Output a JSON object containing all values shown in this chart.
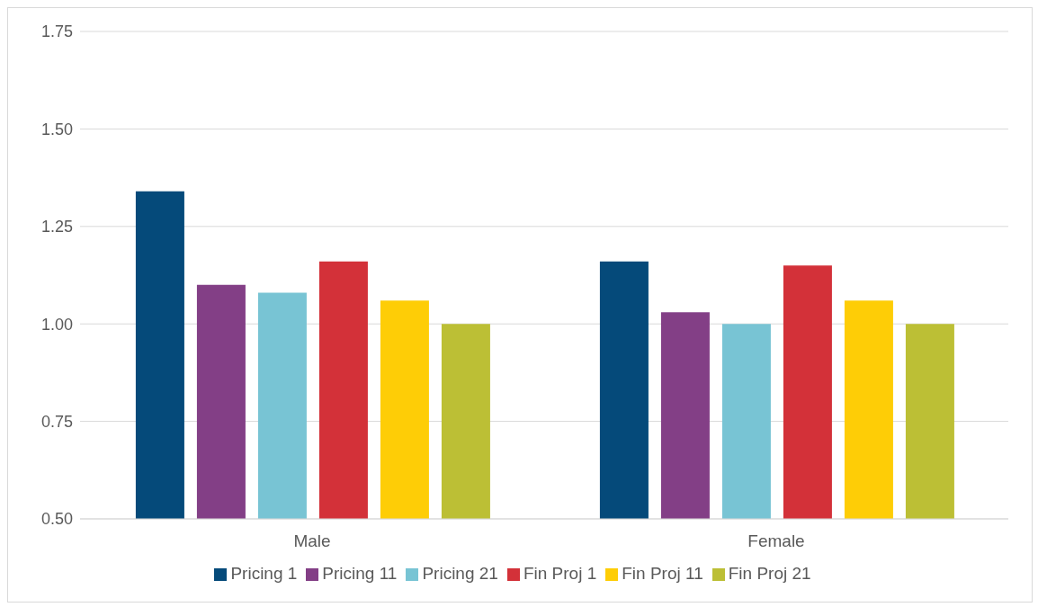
{
  "chart_data": {
    "type": "bar",
    "categories": [
      "Male",
      "Female"
    ],
    "series": [
      {
        "name": "Pricing 1",
        "color": "#054a7a",
        "values": [
          1.34,
          1.16
        ]
      },
      {
        "name": "Pricing 11",
        "color": "#833f86",
        "values": [
          1.1,
          1.03
        ]
      },
      {
        "name": "Pricing 21",
        "color": "#78c4d4",
        "values": [
          1.08,
          1.0
        ]
      },
      {
        "name": "Fin Proj 1",
        "color": "#d33139",
        "values": [
          1.16,
          1.15
        ]
      },
      {
        "name": "Fin Proj 11",
        "color": "#fecd06",
        "values": [
          1.06,
          1.06
        ]
      },
      {
        "name": "Fin Proj 21",
        "color": "#bcbf35",
        "values": [
          1.0,
          1.0
        ]
      }
    ],
    "ylim": [
      0.5,
      1.75
    ],
    "yticks": [
      {
        "value": 0.5,
        "label": "0.50"
      },
      {
        "value": 0.75,
        "label": "0.75"
      },
      {
        "value": 1,
        "label": "1.00"
      },
      {
        "value": 1.25,
        "label": "1.25"
      },
      {
        "value": 1.5,
        "label": "1.50"
      },
      {
        "value": 1.75,
        "label": "1.75"
      }
    ],
    "grid": "y",
    "legend": "bottom"
  }
}
